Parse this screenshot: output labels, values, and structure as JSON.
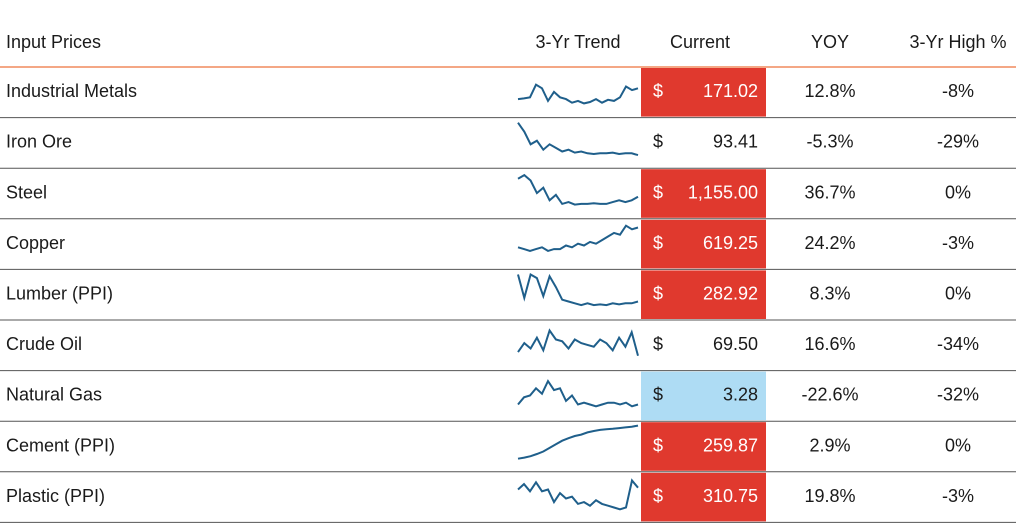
{
  "table": {
    "headers": [
      "Input Prices",
      "3-Yr Trend",
      "Current",
      "YOY",
      "3-Yr High %"
    ],
    "rows": [
      {
        "name": "Industrial Metals",
        "trend": [
          20,
          22,
          25,
          60,
          50,
          15,
          40,
          25,
          20,
          10,
          15,
          8,
          12,
          20,
          10,
          18,
          15,
          25,
          55,
          45,
          50
        ],
        "currency": "$",
        "current": "171.02",
        "current_fill": "#e0392e",
        "yoy": "12.8%",
        "high": "-8%"
      },
      {
        "name": "Iron Ore",
        "trend": [
          95,
          70,
          35,
          45,
          20,
          35,
          25,
          15,
          20,
          12,
          15,
          10,
          8,
          10,
          10,
          12,
          8,
          10,
          10,
          5
        ],
        "currency": "$",
        "current": "93.41",
        "current_fill": null,
        "yoy": "-5.3%",
        "high": "-29%"
      },
      {
        "name": "Steel",
        "trend": [
          80,
          90,
          75,
          40,
          55,
          20,
          35,
          10,
          15,
          8,
          10,
          10,
          12,
          10,
          10,
          15,
          20,
          15,
          20,
          30
        ],
        "currency": "$",
        "current": "1,155.00",
        "current_fill": "#e0392e",
        "yoy": "36.7%",
        "high": "0%"
      },
      {
        "name": "Copper",
        "trend": [
          30,
          25,
          20,
          25,
          30,
          20,
          25,
          25,
          35,
          30,
          40,
          35,
          45,
          40,
          50,
          60,
          70,
          65,
          90,
          80,
          85
        ],
        "currency": "$",
        "current": "619.25",
        "current_fill": "#e0392e",
        "yoy": "24.2%",
        "high": "-3%"
      },
      {
        "name": "Lumber (PPI)",
        "trend": [
          95,
          30,
          95,
          85,
          35,
          90,
          60,
          25,
          20,
          15,
          10,
          15,
          10,
          12,
          10,
          15,
          12,
          15,
          15,
          20
        ],
        "currency": "$",
        "current": "282.92",
        "current_fill": "#e0392e",
        "yoy": "8.3%",
        "high": "0%"
      },
      {
        "name": "Crude Oil",
        "trend": [
          20,
          45,
          30,
          60,
          25,
          80,
          55,
          50,
          30,
          55,
          45,
          40,
          35,
          55,
          45,
          25,
          60,
          35,
          75,
          10
        ],
        "currency": "$",
        "current": "69.50",
        "current_fill": null,
        "yoy": "16.6%",
        "high": "-34%"
      },
      {
        "name": "Natural Gas",
        "trend": [
          15,
          35,
          40,
          60,
          45,
          80,
          55,
          60,
          25,
          40,
          15,
          20,
          15,
          10,
          15,
          20,
          20,
          15,
          20,
          10,
          15
        ],
        "currency": "$",
        "current": "3.28",
        "current_fill": "#aedcf4",
        "yoy": "-22.6%",
        "high": "-32%"
      },
      {
        "name": "Cement (PPI)",
        "trend": [
          5,
          8,
          12,
          18,
          25,
          35,
          45,
          55,
          62,
          68,
          72,
          78,
          82,
          85,
          87,
          88,
          90,
          92,
          94,
          97
        ],
        "currency": "$",
        "current": "259.87",
        "current_fill": "#e0392e",
        "yoy": "2.9%",
        "high": "0%"
      },
      {
        "name": "Plastic (PPI)",
        "trend": [
          60,
          75,
          55,
          80,
          55,
          60,
          25,
          50,
          35,
          40,
          20,
          25,
          15,
          30,
          20,
          15,
          10,
          5,
          10,
          85,
          65
        ],
        "currency": "$",
        "current": "310.75",
        "current_fill": "#e0392e",
        "yoy": "19.8%",
        "high": "-3%"
      }
    ]
  }
}
